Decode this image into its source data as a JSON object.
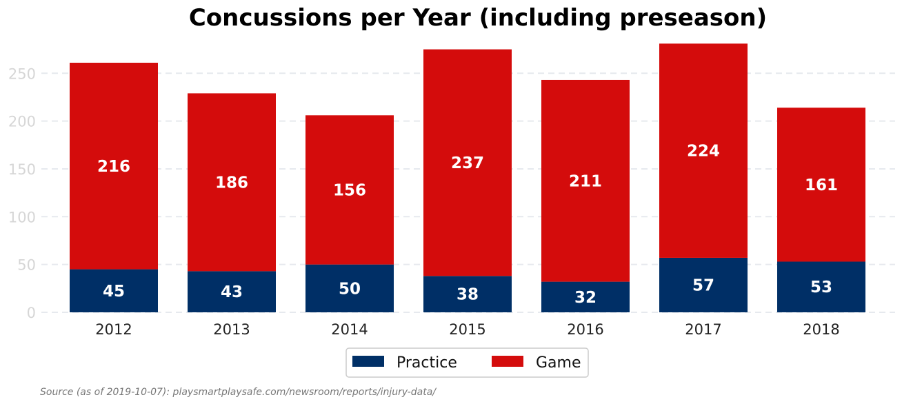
{
  "chart_data": {
    "type": "bar",
    "stacked": true,
    "title": "Concussions per Year (including preseason)",
    "xlabel": "",
    "ylabel": "",
    "categories": [
      "2012",
      "2013",
      "2014",
      "2015",
      "2016",
      "2017",
      "2018"
    ],
    "series": [
      {
        "name": "Practice",
        "color": "#002f66",
        "values": [
          45,
          43,
          50,
          38,
          32,
          57,
          53
        ]
      },
      {
        "name": "Game",
        "color": "#d40c0c",
        "values": [
          216,
          186,
          156,
          237,
          211,
          224,
          161
        ]
      }
    ],
    "ylim": [
      0,
      282
    ],
    "yticks": [
      "0",
      "50",
      "100",
      "150",
      "200",
      "250"
    ],
    "grid": true,
    "legend_position": "bottom-center",
    "source": "Source (as of 2019-10-07): playsmartplaysafe.com/newsroom/reports/injury-data/"
  }
}
